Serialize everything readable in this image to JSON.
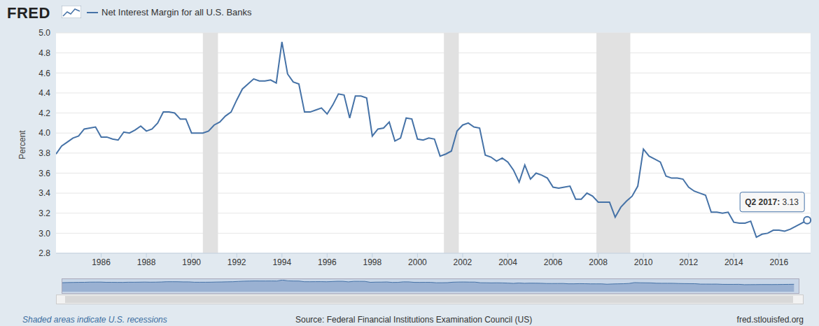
{
  "logo": "FRED",
  "note": "Shaded areas indicate U.S. recessions",
  "source": "Source: Federal Financial Institutions Examination Council (US)",
  "url": "fred.stlouisfed.org",
  "chart_data": {
    "type": "line",
    "y_label": "Percent",
    "legend": "top-left",
    "grid": true,
    "xlim": [
      1984,
      2017.4
    ],
    "xticks": [
      1986,
      1988,
      1990,
      1992,
      1994,
      1996,
      1998,
      2000,
      2002,
      2004,
      2006,
      2008,
      2010,
      2012,
      2014,
      2016
    ],
    "ylim": [
      2.8,
      5.0
    ],
    "yticks": [
      2.8,
      {
        "value": 3.0,
        "label": "3.0"
      },
      3.2,
      3.4,
      3.6,
      3.8,
      {
        "value": 4.0,
        "label": "4.0"
      },
      4.2,
      4.4,
      4.6,
      4.8,
      {
        "value": 5.0,
        "label": "5.0"
      }
    ],
    "recessions": [
      [
        1990.5,
        1991.17
      ],
      [
        2001.17,
        2001.83
      ],
      [
        2007.92,
        2009.42
      ]
    ],
    "annotation": {
      "x": 2017.25,
      "y": 3.13,
      "text": "Q2 2017: 3.13"
    },
    "x": [
      1984,
      1984.25,
      1984.5,
      1984.75,
      1985,
      1985.25,
      1985.5,
      1985.75,
      1986,
      1986.25,
      1986.5,
      1986.75,
      1987,
      1987.25,
      1987.5,
      1987.75,
      1988,
      1988.25,
      1988.5,
      1988.75,
      1989,
      1989.25,
      1989.5,
      1989.75,
      1990,
      1990.25,
      1990.5,
      1990.75,
      1991,
      1991.25,
      1991.5,
      1991.75,
      1992,
      1992.25,
      1992.5,
      1992.75,
      1993,
      1993.25,
      1993.5,
      1993.75,
      1994,
      1994.25,
      1994.5,
      1994.75,
      1995,
      1995.25,
      1995.5,
      1995.75,
      1996,
      1996.25,
      1996.5,
      1996.75,
      1997,
      1997.25,
      1997.5,
      1997.75,
      1998,
      1998.25,
      1998.5,
      1998.75,
      1999,
      1999.25,
      1999.5,
      1999.75,
      2000,
      2000.25,
      2000.5,
      2000.75,
      2001,
      2001.25,
      2001.5,
      2001.75,
      2002,
      2002.25,
      2002.5,
      2002.75,
      2003,
      2003.25,
      2003.5,
      2003.75,
      2004,
      2004.25,
      2004.5,
      2004.75,
      2005,
      2005.25,
      2005.5,
      2005.75,
      2006,
      2006.25,
      2006.5,
      2006.75,
      2007,
      2007.25,
      2007.5,
      2007.75,
      2008,
      2008.25,
      2008.5,
      2008.75,
      2009,
      2009.25,
      2009.5,
      2009.75,
      2010,
      2010.25,
      2010.5,
      2010.75,
      2011,
      2011.25,
      2011.5,
      2011.75,
      2012,
      2012.25,
      2012.5,
      2012.75,
      2013,
      2013.25,
      2013.5,
      2013.75,
      2014,
      2014.25,
      2014.5,
      2014.75,
      2015,
      2015.25,
      2015.5,
      2015.75,
      2016,
      2016.25,
      2016.5,
      2016.75,
      2017,
      2017.25
    ],
    "series": [
      {
        "name": "Net Interest Margin for all U.S. Banks",
        "color": "#4572a7",
        "values": [
          3.79,
          3.87,
          3.91,
          3.95,
          3.97,
          4.04,
          4.05,
          4.06,
          3.96,
          3.96,
          3.94,
          3.93,
          4.01,
          4.0,
          4.03,
          4.07,
          4.02,
          4.04,
          4.1,
          4.21,
          4.21,
          4.2,
          4.14,
          4.14,
          4.0,
          4.0,
          4.0,
          4.02,
          4.08,
          4.11,
          4.17,
          4.21,
          4.33,
          4.44,
          4.49,
          4.54,
          4.52,
          4.52,
          4.53,
          4.5,
          4.91,
          4.59,
          4.51,
          4.49,
          4.21,
          4.21,
          4.23,
          4.25,
          4.19,
          4.28,
          4.39,
          4.38,
          4.15,
          4.37,
          4.37,
          4.35,
          3.97,
          4.04,
          4.05,
          4.11,
          3.92,
          3.95,
          4.15,
          4.14,
          3.94,
          3.93,
          3.95,
          3.94,
          3.77,
          3.79,
          3.82,
          4.02,
          4.08,
          4.1,
          4.06,
          4.05,
          3.78,
          3.76,
          3.72,
          3.75,
          3.71,
          3.63,
          3.51,
          3.68,
          3.54,
          3.6,
          3.58,
          3.55,
          3.46,
          3.45,
          3.46,
          3.47,
          3.34,
          3.34,
          3.4,
          3.37,
          3.31,
          3.31,
          3.31,
          3.16,
          3.26,
          3.32,
          3.37,
          3.47,
          3.84,
          3.77,
          3.74,
          3.71,
          3.57,
          3.55,
          3.55,
          3.54,
          3.46,
          3.42,
          3.4,
          3.38,
          3.21,
          3.21,
          3.2,
          3.21,
          3.11,
          3.1,
          3.1,
          3.12,
          2.96,
          2.99,
          3.0,
          3.03,
          3.03,
          3.02,
          3.04,
          3.07,
          3.1,
          3.13
        ]
      }
    ]
  }
}
